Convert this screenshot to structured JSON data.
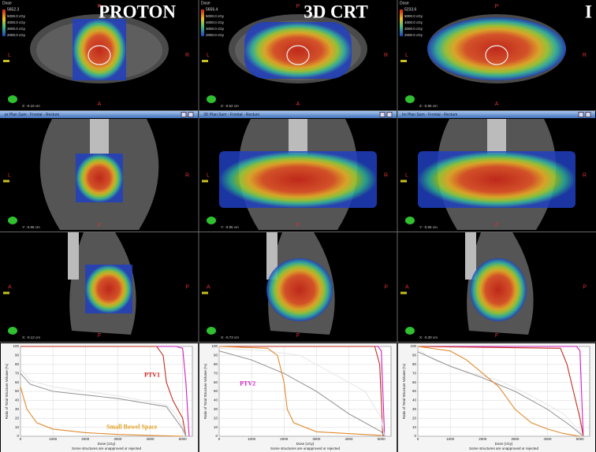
{
  "orientation": {
    "axial": {
      "top": "P",
      "left": "L",
      "right": "R",
      "bottom": "A"
    },
    "frontal": {
      "left": "L",
      "right": "R",
      "bottom": "F"
    },
    "sagittal": {
      "left": "A",
      "right": "P",
      "bottom": "F"
    }
  },
  "dvh_axes": {
    "xlabel": "Dose (cGy)",
    "ylabel": "Ratio of Total Structure Volume (%)",
    "footer": "Some structures are unapproved or rejected",
    "xlim": [
      0,
      5300
    ],
    "ylim": [
      0,
      100
    ],
    "xticks": [
      0,
      1000,
      2000,
      3000,
      4000,
      5000
    ],
    "yticks": [
      0,
      10,
      20,
      30,
      40,
      50,
      60,
      70,
      80,
      90,
      100
    ]
  },
  "columns": [
    {
      "title": "PROTON",
      "header": "pr Plan Sum - Frontal - Rectum",
      "legend": {
        "label": "Dose",
        "max": "5652.3",
        "levels": [
          "5000.0 cGy",
          "4000.0 cGy",
          "3000.0 cGy",
          "2000.0 cGy"
        ]
      },
      "coords": [
        "Z: -0.10 cm",
        "Y: -0.95 cm",
        "X: -0.12 cm"
      ],
      "annotations": [
        "PTV1",
        "Small Bowel Space"
      ],
      "series": [
        {
          "color": "#d020c0",
          "x": [
            0,
            4800,
            5000,
            5100,
            5200
          ],
          "values": [
            100,
            100,
            98,
            60,
            0
          ]
        },
        {
          "color": "#c03020",
          "x": [
            0,
            4200,
            4400,
            4500,
            4700,
            5000,
            5100
          ],
          "values": [
            100,
            100,
            90,
            60,
            40,
            20,
            0
          ]
        },
        {
          "color": "#e8e8e8",
          "x": [
            0,
            300,
            1000,
            3000,
            4500,
            4800,
            5000,
            5100
          ],
          "values": [
            75,
            62,
            55,
            45,
            35,
            25,
            10,
            0
          ]
        },
        {
          "color": "#9a9a9a",
          "x": [
            0,
            300,
            1000,
            3000,
            4500,
            5000,
            5100
          ],
          "values": [
            70,
            58,
            50,
            42,
            33,
            8,
            0
          ]
        },
        {
          "color": "#e08a30",
          "x": [
            0,
            200,
            500,
            1000,
            2000,
            3000,
            4000,
            5000
          ],
          "values": [
            55,
            30,
            15,
            8,
            4,
            2,
            1,
            0
          ]
        }
      ]
    },
    {
      "title": "3D CRT",
      "header": "3D Plan Sum - Frontal - Rectum",
      "legend": {
        "label": "Dose",
        "max": "5656.4",
        "levels": [
          "5000.0 cGy",
          "4000.0 cGy",
          "3000.0 cGy",
          "2000.0 cGy"
        ]
      },
      "coords": [
        "Z: -0.52 cm",
        "Y: -0.95 cm",
        "X: -0.73 cm"
      ],
      "annotations": [
        "PTV2"
      ],
      "series": [
        {
          "color": "#d020c0",
          "x": [
            0,
            4900,
            5000,
            5100
          ],
          "values": [
            100,
            100,
            95,
            0
          ]
        },
        {
          "color": "#c03020",
          "x": [
            0,
            4800,
            4950,
            5050
          ],
          "values": [
            100,
            100,
            80,
            0
          ]
        },
        {
          "color": "#e8e8e8",
          "x": [
            0,
            1500,
            2500,
            3000,
            3500,
            4500,
            5000,
            5100
          ],
          "values": [
            98,
            95,
            90,
            80,
            70,
            50,
            20,
            0
          ]
        },
        {
          "color": "#9a9a9a",
          "x": [
            0,
            1000,
            2000,
            3000,
            4000,
            4500,
            5000,
            5100
          ],
          "values": [
            95,
            85,
            70,
            50,
            25,
            15,
            5,
            0
          ]
        },
        {
          "color": "#e08a30",
          "x": [
            0,
            1500,
            1800,
            2000,
            2100,
            2300,
            3000,
            5000
          ],
          "values": [
            100,
            98,
            90,
            60,
            30,
            15,
            5,
            1
          ]
        }
      ]
    },
    {
      "title": "I",
      "header": "Im Plan Sum - Frontal - Rectum",
      "legend": {
        "label": "Dose",
        "max": "5233.6",
        "levels": [
          "5000.0 cGy",
          "4000.0 cGy",
          "3000.0 cGy",
          "2000.0 cGy"
        ]
      },
      "coords": [
        "Z: -0.95 cm",
        "Y: -0.95 cm",
        "X: -0.30 cm"
      ],
      "annotations": [],
      "series": [
        {
          "color": "#d020c0",
          "x": [
            0,
            4900,
            5000,
            5100
          ],
          "values": [
            100,
            100,
            95,
            0
          ]
        },
        {
          "color": "#c03020",
          "x": [
            0,
            4400,
            4600,
            4800,
            5000,
            5100
          ],
          "values": [
            100,
            98,
            80,
            50,
            20,
            0
          ]
        },
        {
          "color": "#e8e8e8",
          "x": [
            0,
            500,
            1500,
            2500,
            3500,
            4500,
            5000,
            5100
          ],
          "values": [
            97,
            85,
            72,
            62,
            45,
            25,
            5,
            0
          ]
        },
        {
          "color": "#9a9a9a",
          "x": [
            0,
            1000,
            2000,
            3000,
            4000,
            4700,
            5100
          ],
          "values": [
            94,
            78,
            65,
            50,
            30,
            12,
            0
          ]
        },
        {
          "color": "#e08a30",
          "x": [
            0,
            1000,
            1500,
            2000,
            2500,
            3000,
            3500,
            4000,
            4500,
            5000
          ],
          "values": [
            100,
            95,
            85,
            70,
            55,
            30,
            15,
            8,
            3,
            0
          ]
        }
      ]
    }
  ]
}
